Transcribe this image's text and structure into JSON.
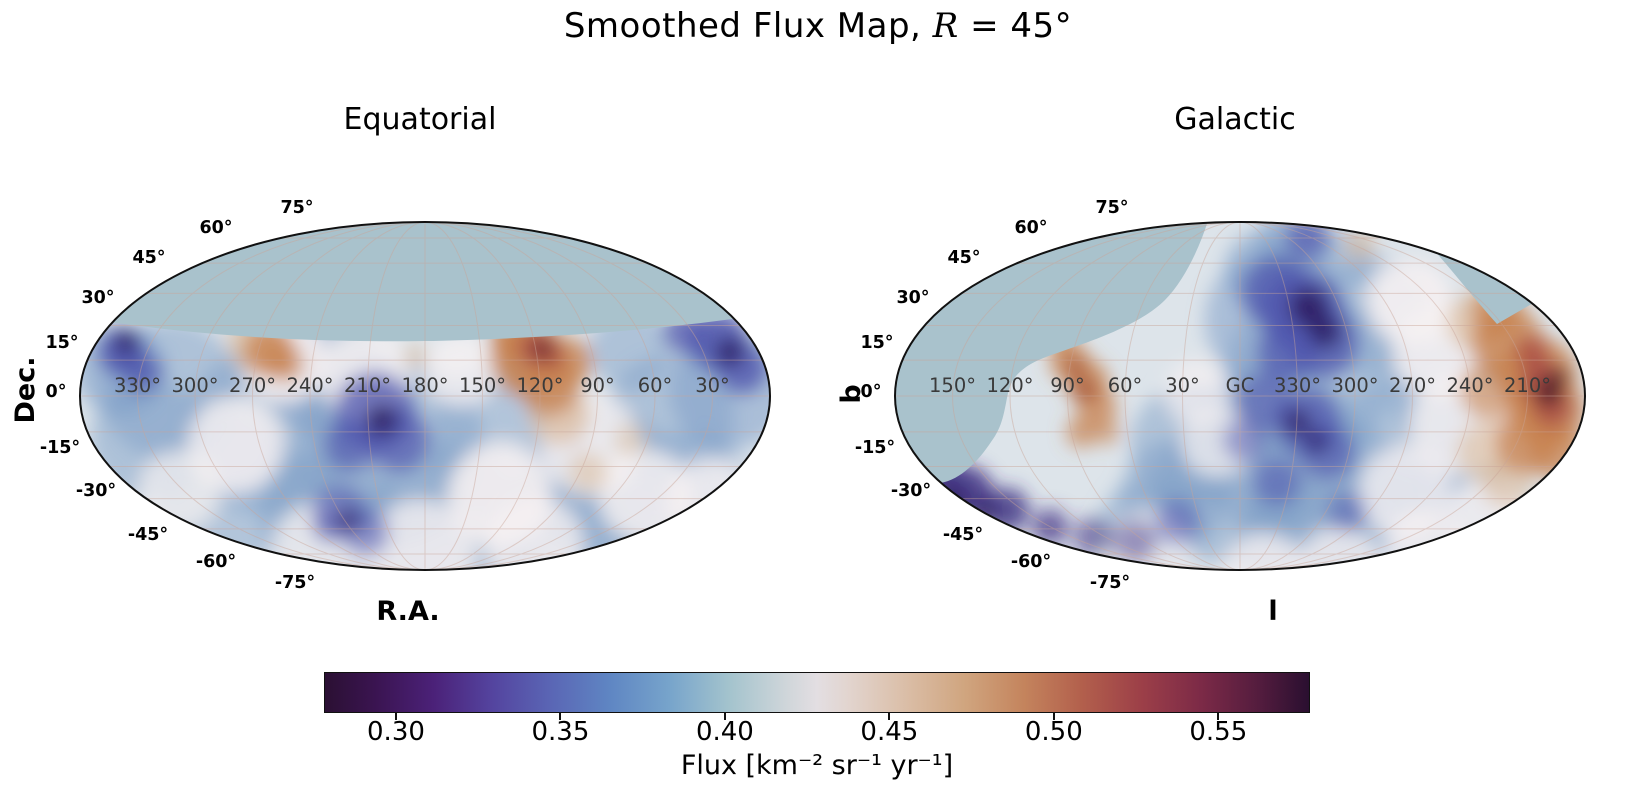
{
  "title": {
    "full": "Smoothed Flux Map, R = 45°",
    "prefix": "Smoothed Flux Map, ",
    "variable": "R",
    "suffix": " = 45°"
  },
  "panels": [
    {
      "id": "equatorial",
      "title": "Equatorial",
      "xlabel": "R.A.",
      "ylabel": "Dec.",
      "lat_ticks": [
        "75°",
        "60°",
        "45°",
        "30°",
        "15°",
        "0°",
        "-15°",
        "-30°",
        "-45°",
        "-60°",
        "-75°"
      ],
      "lon_labels": [
        "330°",
        "300°",
        "270°",
        "240°",
        "210°",
        "180°",
        "150°",
        "120°",
        "90°",
        "60°",
        "30°"
      ]
    },
    {
      "id": "galactic",
      "title": "Galactic",
      "xlabel": "l",
      "ylabel": "b",
      "lat_ticks": [
        "75°",
        "60°",
        "45°",
        "30°",
        "15°",
        "0°",
        "-15°",
        "-30°",
        "-45°",
        "-60°",
        "-75°"
      ],
      "lon_labels": [
        "150°",
        "120°",
        "90°",
        "60°",
        "30°",
        "GC",
        "330°",
        "300°",
        "270°",
        "240°",
        "210°"
      ]
    }
  ],
  "colorbar": {
    "label": "Flux [km⁻² sr⁻¹ yr⁻¹]",
    "ticks": [
      "0.30",
      "0.35",
      "0.40",
      "0.45",
      "0.50",
      "0.55"
    ],
    "vmin": 0.28,
    "vmax": 0.58,
    "colormap": "twilight_shifted"
  },
  "colors": {
    "masked": "#a9c2cc",
    "map_base": "#dde4ea",
    "graticule": "#c9a598",
    "outline": "#111111",
    "colormap_stops": [
      [
        0.0,
        "#2b1033"
      ],
      [
        0.05,
        "#3a1450"
      ],
      [
        0.11,
        "#4b2178"
      ],
      [
        0.17,
        "#54449f"
      ],
      [
        0.23,
        "#5a66b5"
      ],
      [
        0.29,
        "#5f86c3"
      ],
      [
        0.35,
        "#77a4cb"
      ],
      [
        0.41,
        "#a3c3cd"
      ],
      [
        0.47,
        "#d0d6da"
      ],
      [
        0.5,
        "#e3dee2"
      ],
      [
        0.53,
        "#e2d5d0"
      ],
      [
        0.58,
        "#dcc2ae"
      ],
      [
        0.65,
        "#d0a57f"
      ],
      [
        0.71,
        "#c4845d"
      ],
      [
        0.77,
        "#b25f4c"
      ],
      [
        0.83,
        "#9c3f48"
      ],
      [
        0.89,
        "#7c2a47"
      ],
      [
        0.95,
        "#531c3e"
      ],
      [
        1.0,
        "#2a0f30"
      ]
    ]
  },
  "chart_data": {
    "type": "heatmap",
    "subtype": "mollweide-all-sky-flux-map",
    "title": "Smoothed Flux Map, R = 45°",
    "smoothing_radius_deg": 45,
    "colorbar": {
      "label": "Flux [km⁻² sr⁻¹ yr⁻¹]",
      "ticks": [
        0.3,
        0.35,
        0.4,
        0.45,
        0.5,
        0.55
      ],
      "range": [
        0.28,
        0.58
      ],
      "colormap": "twilight_shifted"
    },
    "panels": [
      {
        "title": "Equatorial",
        "xlabel": "R.A.",
        "ylabel": "Dec.",
        "lat_ticks_deg": [
          75,
          60,
          45,
          30,
          15,
          0,
          -15,
          -30,
          -45,
          -60,
          -75
        ],
        "lon_ticks": [
          "330°",
          "300°",
          "270°",
          "240°",
          "210°",
          "180°",
          "150°",
          "120°",
          "90°",
          "60°",
          "30°"
        ],
        "masked_region": "declinations above about +25° shown as uniform light blue (outside field of view)",
        "features": [
          {
            "kind": "excess",
            "ra_deg": 105,
            "dec_deg": 12,
            "flux": 0.56
          },
          {
            "kind": "excess",
            "ra_deg": 270,
            "dec_deg": 8,
            "flux": 0.5
          },
          {
            "kind": "deficit",
            "ra_deg": 205,
            "dec_deg": -8,
            "flux": 0.33
          },
          {
            "kind": "deficit",
            "ra_deg": 355,
            "dec_deg": 12,
            "flux": 0.31
          },
          {
            "kind": "deficit",
            "ra_deg": 25,
            "dec_deg": 10,
            "flux": 0.32
          },
          {
            "kind": "deficit",
            "ra_deg": 215,
            "dec_deg": -50,
            "flux": 0.34
          }
        ]
      },
      {
        "title": "Galactic",
        "xlabel": "l",
        "ylabel": "b",
        "lat_ticks_deg": [
          75,
          60,
          45,
          30,
          15,
          0,
          -15,
          -30,
          -45,
          -60,
          -75
        ],
        "lon_ticks": [
          "150°",
          "120°",
          "90°",
          "60°",
          "30°",
          "GC",
          "330°",
          "300°",
          "270°",
          "240°",
          "210°"
        ],
        "masked_region": "lens-shaped region left of the diagonal exposure boundary shown as uniform light blue",
        "features": [
          {
            "kind": "excess",
            "l_deg": 215,
            "b_deg": 5,
            "flux": 0.57
          },
          {
            "kind": "excess",
            "l_deg": 40,
            "b_deg": 5,
            "flux": 0.52
          },
          {
            "kind": "deficit",
            "l_deg": 330,
            "b_deg": 45,
            "flux": 0.31
          },
          {
            "kind": "deficit",
            "l_deg": 80,
            "b_deg": -35,
            "flux": 0.29
          },
          {
            "kind": "deficit",
            "l_deg": 320,
            "b_deg": -5,
            "flux": 0.33
          }
        ]
      }
    ]
  }
}
